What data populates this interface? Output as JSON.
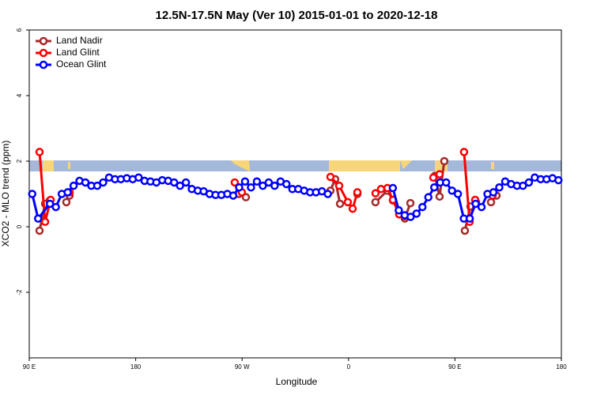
{
  "chart_data": {
    "type": "line",
    "title": "12.5N-17.5N May (Ver 10)   2015-01-01 to 2020-12-18",
    "x_label": "Longitude",
    "y_label": "XCO2 - MLO trend (ppm)",
    "xlim": [
      90,
      540
    ],
    "ylim": [
      -4,
      6
    ],
    "xticks": [
      {
        "value": 90,
        "label": "90 E"
      },
      {
        "value": 180,
        "label": "180"
      },
      {
        "value": 270,
        "label": "90 W"
      },
      {
        "value": 360,
        "label": "0"
      },
      {
        "value": 450,
        "label": "90 E"
      },
      {
        "value": 540,
        "label": "180"
      }
    ],
    "yticks": [
      -2,
      0,
      2,
      4,
      6
    ],
    "legend": "top-left",
    "series": [
      {
        "name": "Land Nadir",
        "color": "#a52a2a",
        "x": [
          98.7,
          103.4,
          107.4,
          null,
          121.4,
          124.1,
          null,
          267.2,
          273.2,
          null,
          344.7,
          348.7,
          352.8,
          null,
          367.5,
          null,
          382.8,
          392.9,
          397.6,
          402.9,
          407.6,
          412.3,
          null,
          433.0,
          437.0,
          441.0,
          null,
          458.4,
          463.1,
          467.8,
          null,
          480.5,
          485.2
        ],
        "values": [
          -0.12,
          0.7,
          0.8,
          null,
          0.75,
          0.95,
          null,
          1.0,
          0.9,
          null,
          1.1,
          1.45,
          0.7,
          null,
          1.0,
          null,
          0.75,
          1.1,
          0.8,
          0.38,
          0.25,
          0.72,
          null,
          1.55,
          0.92,
          2.0,
          null,
          -0.12,
          0.62,
          0.75,
          null,
          0.75,
          0.95
        ]
      },
      {
        "name": "Land Glint",
        "color": "#ff0000",
        "x": [
          98.7,
          103.4,
          108.1,
          null,
          124.1,
          null,
          263.8,
          269.8,
          null,
          344.7,
          352.1,
          359.4,
          363.5,
          367.5,
          null,
          382.8,
          387.5,
          392.9,
          397.6,
          402.9,
          407.6,
          null,
          431.7,
          437.0,
          null,
          457.7,
          462.4,
          467.1,
          null,
          481.8
        ],
        "values": [
          2.28,
          0.15,
          0.82,
          null,
          1.05,
          null,
          1.35,
          1.05,
          null,
          1.52,
          1.25,
          0.75,
          0.55,
          1.05,
          null,
          1.02,
          1.15,
          1.18,
          0.82,
          0.38,
          0.32,
          null,
          1.5,
          1.6,
          null,
          2.28,
          0.15,
          0.82,
          null,
          0.95
        ]
      },
      {
        "name": "Ocean Glint",
        "color": "#0000ff",
        "x": [
          92.5,
          97.5,
          107.5,
          112.5,
          117.5,
          122.5,
          127.5,
          132.5,
          137.5,
          142.5,
          147.5,
          152.5,
          157.5,
          162.5,
          167.5,
          172.5,
          177.5,
          182.5,
          187.5,
          192.5,
          197.5,
          202.5,
          207.5,
          212.5,
          217.5,
          222.5,
          227.5,
          232.5,
          237.5,
          242.5,
          247.5,
          252.5,
          257.5,
          262.5,
          267.5,
          272.5,
          277.5,
          282.5,
          287.5,
          292.5,
          297.5,
          302.5,
          307.5,
          312.5,
          317.5,
          322.5,
          327.5,
          332.5,
          337.5,
          342.5,
          null,
          397.5,
          402.5,
          407.5,
          412.5,
          417.5,
          422.5,
          427.5,
          432.5,
          437.5,
          442.5,
          447.5,
          452.5,
          457.5,
          462.5,
          467.5,
          472.5,
          477.5,
          482.5,
          487.5,
          492.5,
          497.5,
          502.5,
          507.5,
          512.5,
          517.5,
          522.5,
          527.5,
          532.5,
          537.5
        ],
        "values": [
          1.0,
          0.25,
          0.7,
          0.6,
          1.0,
          1.05,
          1.25,
          1.4,
          1.35,
          1.25,
          1.25,
          1.35,
          1.5,
          1.45,
          1.45,
          1.48,
          1.45,
          1.5,
          1.4,
          1.38,
          1.35,
          1.42,
          1.4,
          1.35,
          1.25,
          1.35,
          1.15,
          1.1,
          1.08,
          1.0,
          0.97,
          0.97,
          1.0,
          0.95,
          1.2,
          1.38,
          1.2,
          1.38,
          1.25,
          1.35,
          1.25,
          1.38,
          1.3,
          1.15,
          1.15,
          1.1,
          1.05,
          1.05,
          1.08,
          1.0,
          null,
          1.18,
          0.5,
          0.35,
          0.3,
          0.4,
          0.6,
          0.9,
          1.2,
          1.35,
          1.35,
          1.1,
          1.0,
          0.25,
          0.25,
          0.7,
          0.6,
          1.0,
          1.05,
          1.2,
          1.38,
          1.3,
          1.25,
          1.25,
          1.35,
          1.5,
          1.45,
          1.45,
          1.48,
          1.42
        ]
      }
    ]
  }
}
